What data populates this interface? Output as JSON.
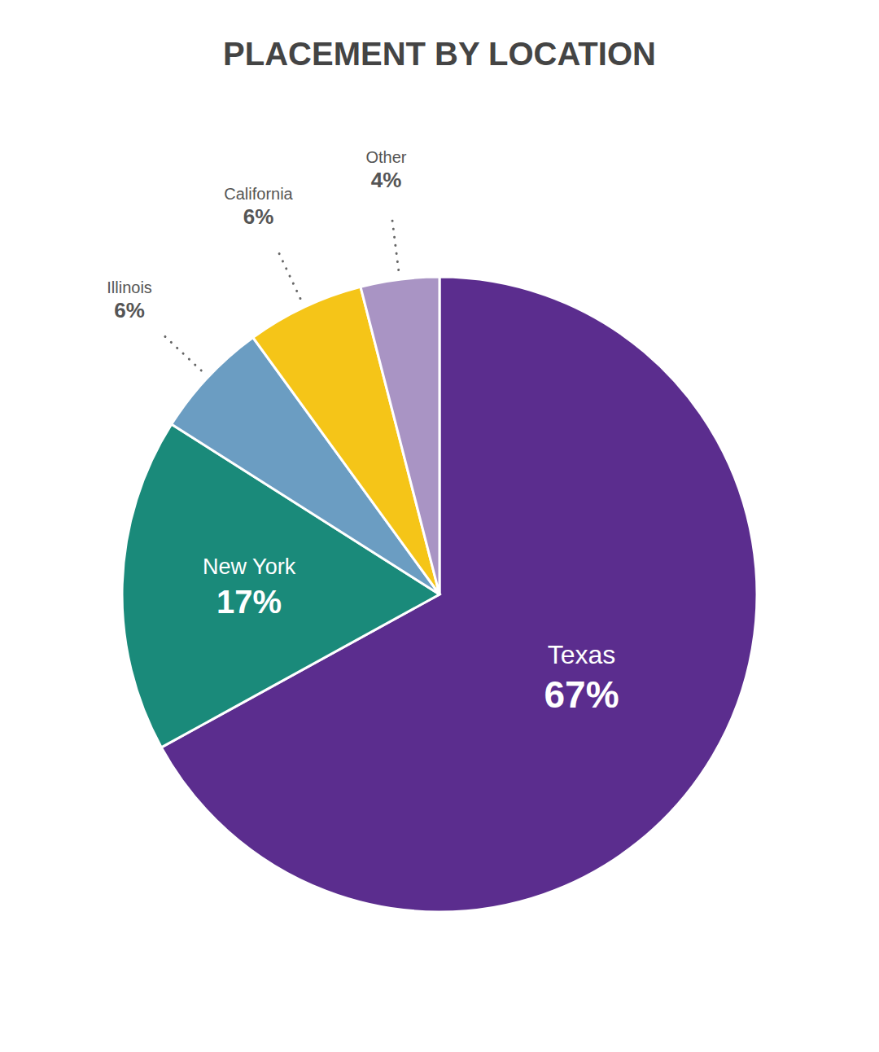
{
  "chart_data": {
    "type": "pie",
    "title": "PLACEMENT BY LOCATION",
    "categories": [
      "Texas",
      "New York",
      "Illinois",
      "California",
      "Other"
    ],
    "values": [
      67,
      17,
      6,
      6,
      4
    ],
    "value_labels": [
      "67%",
      "17%",
      "6%",
      "6%",
      "4%"
    ],
    "colors": [
      "#5b2d8e",
      "#1a8a7a",
      "#6b9dc2",
      "#f5c518",
      "#a994c4"
    ],
    "data_labels": true
  }
}
